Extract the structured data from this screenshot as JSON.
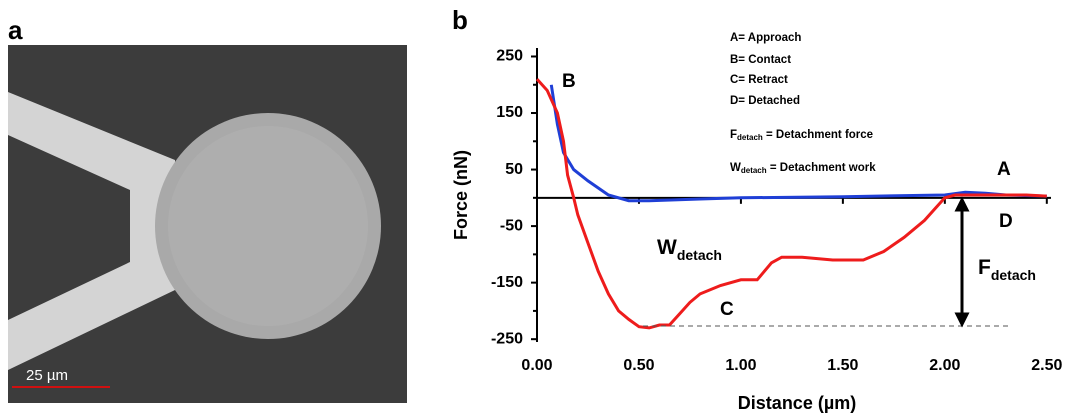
{
  "panels": {
    "a": "a",
    "b": "b"
  },
  "micrograph": {
    "scale_bar": "25 µm"
  },
  "chart_data": {
    "type": "line",
    "x_label": "Distance (µm)",
    "y_label": "Force (nN)",
    "xlim": [
      0,
      2.55
    ],
    "ylim": [
      -255,
      265
    ],
    "xticks": [
      {
        "value": 0,
        "label": "0.00"
      },
      {
        "value": 0.5,
        "label": "0.50"
      },
      {
        "value": 1,
        "label": "1.00"
      },
      {
        "value": 1.5,
        "label": "1.50"
      },
      {
        "value": 2,
        "label": "2.00"
      },
      {
        "value": 2.5,
        "label": "2.50"
      }
    ],
    "yticks": [
      -250,
      -150,
      -50,
      50,
      150,
      250
    ],
    "yminorticks": [
      -200,
      -100,
      0,
      100,
      200
    ],
    "series": [
      {
        "color": "#1f3fd6",
        "x": [
          0.07,
          0.1,
          0.13,
          0.18,
          0.25,
          0.35,
          0.45,
          0.55,
          0.8,
          1.0,
          1.5,
          2.0,
          2.1,
          2.2,
          2.3,
          2.5
        ],
        "values": [
          200,
          130,
          80,
          50,
          30,
          5,
          -5,
          -5,
          -2,
          0,
          2,
          5,
          10,
          8,
          5,
          3
        ]
      },
      {
        "color": "#ee1c1c",
        "x": [
          0,
          0.05,
          0.1,
          0.13,
          0.15,
          0.18,
          0.2,
          0.25,
          0.3,
          0.35,
          0.4,
          0.45,
          0.5,
          0.55,
          0.6,
          0.65,
          0.7,
          0.75,
          0.8,
          0.9,
          1.0,
          1.08,
          1.15,
          1.2,
          1.3,
          1.45,
          1.6,
          1.7,
          1.8,
          1.9,
          1.95,
          2.0,
          2.05,
          2.2,
          2.4,
          2.5
        ],
        "values": [
          210,
          190,
          150,
          100,
          40,
          0,
          -30,
          -80,
          -130,
          -170,
          -200,
          -215,
          -228,
          -230,
          -225,
          -225,
          -205,
          -185,
          -170,
          -155,
          -145,
          -145,
          -115,
          -105,
          -105,
          -110,
          -110,
          -95,
          -70,
          -40,
          -20,
          0,
          5,
          5,
          5,
          3
        ]
      }
    ],
    "legend_notes": [
      "A= Approach",
      "B= Contact",
      "C= Retract",
      "D= Detached"
    ],
    "definitions": [
      {
        "symbol": "F",
        "sub": "detach",
        "text": " = Detachment force"
      },
      {
        "symbol": "W",
        "sub": "detach",
        "text": " = Detachment work"
      }
    ],
    "point_labels": {
      "A": "A",
      "B": "B",
      "C": "C",
      "D": "D"
    },
    "work_label": {
      "symbol": "W",
      "sub": "detach"
    },
    "force_label": {
      "symbol": "F",
      "sub": "detach"
    }
  }
}
